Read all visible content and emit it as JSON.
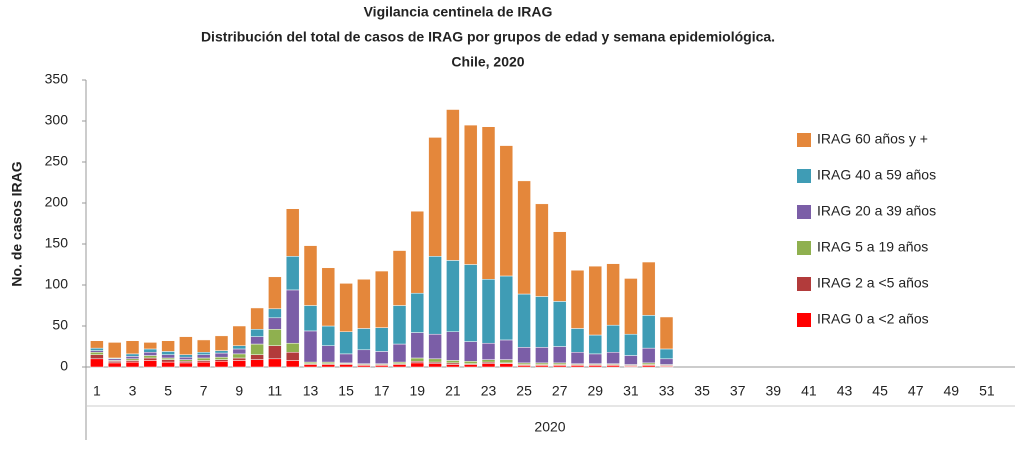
{
  "chart_data": {
    "type": "stacked-bar",
    "title": "Vigilancia centinela de IRAG",
    "subtitle": "Distribución del total de casos de IRAG por  grupos de edad y semana epidemiológica.",
    "subtitle2": "Chile, 2020",
    "y_label": "No. de casos IRAG",
    "x_label": "2020",
    "categories": [
      "1",
      null,
      "3",
      null,
      "5",
      null,
      "7",
      null,
      "9",
      null,
      "11",
      null,
      "13",
      null,
      "15",
      null,
      "17",
      null,
      "19",
      null,
      "21",
      null,
      "23",
      null,
      "25",
      null,
      "27",
      null,
      "29",
      null,
      "31",
      null,
      "33",
      null,
      "35",
      null,
      "37",
      null,
      "39",
      null,
      "41",
      null,
      "43",
      null,
      "45",
      null,
      "47",
      null,
      "49",
      null,
      "51",
      null
    ],
    "ylim": [
      0,
      350
    ],
    "yticks": [
      0,
      50,
      100,
      150,
      200,
      250,
      300,
      350
    ],
    "series": [
      {
        "name": "IRAG 0 a <2 años",
        "color": "#ff0000",
        "values": [
          10,
          5,
          6,
          8,
          6,
          5,
          6,
          7,
          8,
          9,
          10,
          8,
          3,
          3,
          3,
          2,
          2,
          3,
          5,
          4,
          3,
          3,
          4,
          4,
          2,
          2,
          2,
          2,
          2,
          2,
          1,
          2,
          1,
          0,
          0,
          0,
          0,
          0,
          0,
          0,
          0,
          0,
          0,
          0,
          0,
          0,
          0,
          0,
          0,
          0,
          0,
          0
        ]
      },
      {
        "name": "IRAG 2 a <5 años",
        "color": "#b23b3b",
        "values": [
          5,
          2,
          2,
          3,
          3,
          2,
          2,
          2,
          3,
          6,
          16,
          10,
          1,
          1,
          1,
          1,
          1,
          1,
          2,
          2,
          2,
          1,
          2,
          1,
          1,
          1,
          1,
          1,
          1,
          1,
          1,
          1,
          1,
          0,
          0,
          0,
          0,
          0,
          0,
          0,
          0,
          0,
          0,
          0,
          0,
          0,
          0,
          0,
          0,
          0,
          0,
          0
        ]
      },
      {
        "name": "IRAG 5 a 19 años",
        "color": "#8fb04f",
        "values": [
          3,
          1,
          2,
          3,
          2,
          2,
          3,
          3,
          5,
          13,
          20,
          11,
          2,
          2,
          1,
          1,
          1,
          2,
          4,
          4,
          3,
          3,
          3,
          4,
          2,
          2,
          2,
          1,
          1,
          1,
          1,
          2,
          1,
          0,
          0,
          0,
          0,
          0,
          0,
          0,
          0,
          0,
          0,
          0,
          0,
          0,
          0,
          0,
          0,
          0,
          0,
          0
        ]
      },
      {
        "name": "IRAG 20 a 39 años",
        "color": "#7b5ea7",
        "values": [
          2,
          2,
          3,
          4,
          4,
          3,
          4,
          5,
          6,
          9,
          14,
          65,
          38,
          20,
          11,
          17,
          15,
          22,
          31,
          30,
          35,
          24,
          20,
          24,
          19,
          19,
          20,
          14,
          12,
          14,
          11,
          18,
          7,
          0,
          0,
          0,
          0,
          0,
          0,
          0,
          0,
          0,
          0,
          0,
          0,
          0,
          0,
          0,
          0,
          0,
          0,
          0
        ]
      },
      {
        "name": "IRAG 40 a 59 años",
        "color": "#3f9cb5",
        "values": [
          3,
          1,
          3,
          4,
          4,
          3,
          3,
          3,
          4,
          9,
          11,
          41,
          31,
          24,
          27,
          26,
          29,
          47,
          48,
          95,
          87,
          94,
          78,
          78,
          65,
          62,
          55,
          29,
          23,
          33,
          26,
          40,
          12,
          0,
          0,
          0,
          0,
          0,
          0,
          0,
          0,
          0,
          0,
          0,
          0,
          0,
          0,
          0,
          0,
          0,
          0,
          0
        ]
      },
      {
        "name": "IRAG 60 años y +",
        "color": "#e4873b",
        "values": [
          9,
          19,
          16,
          8,
          13,
          22,
          15,
          18,
          24,
          26,
          39,
          58,
          73,
          71,
          59,
          60,
          69,
          67,
          100,
          145,
          184,
          170,
          186,
          159,
          138,
          113,
          85,
          71,
          84,
          75,
          68,
          65,
          39,
          0,
          0,
          0,
          0,
          0,
          0,
          0,
          0,
          0,
          0,
          0,
          0,
          0,
          0,
          0,
          0,
          0,
          0,
          0
        ]
      }
    ]
  }
}
